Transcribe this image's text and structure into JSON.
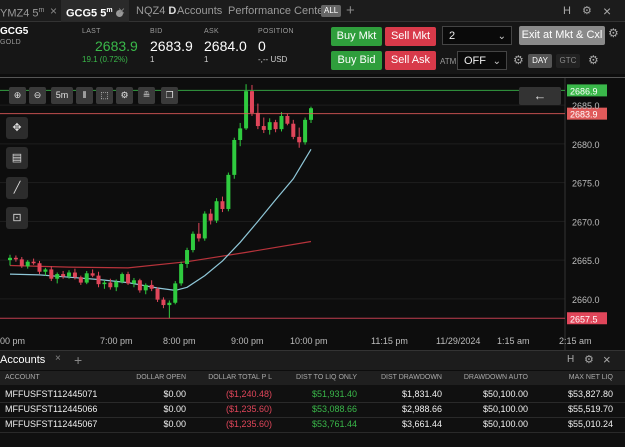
{
  "tabs": {
    "t1": "YMZ4 5",
    "t1_sup": "m",
    "t2": "GCG5 5",
    "t2_sup": "m",
    "t3": "NQZ4",
    "t3_b": "D",
    "t4": "Accounts",
    "t5": "Performance Center",
    "all_badge": "ALL",
    "add": "+",
    "close": "×",
    "right_h": "H",
    "right_gear": "⚙",
    "right_close": "×"
  },
  "quote": {
    "symbol": "GCG5",
    "name": "GOLD",
    "last_label": "LAST",
    "last_value": "2683.9",
    "change": "19.1 (0.72%)",
    "bid_label": "BID",
    "bid_value": "2683.9",
    "bid_size": "1",
    "ask_label": "ASK",
    "ask_value": "2684.0",
    "ask_size": "1",
    "position_label": "POSITION",
    "position_value": "0",
    "position_sub": "-,-- USD",
    "buy_mkt": "Buy Mkt",
    "sell_mkt": "Sell Mkt",
    "buy_bid": "Buy Bid",
    "sell_ask": "Sell Ask",
    "qty": "2",
    "exit_label": "Exit at Mkt & Cxl",
    "atm_label": "ATM",
    "atm_value": "OFF",
    "day": "DAY",
    "gtc": "GTC"
  },
  "toolbar": {
    "zoom_in": "⊕",
    "zoom_out": "⊖",
    "interval": "5m",
    "bars": "⦀",
    "select": "⬚",
    "settings": "⚙",
    "indicators": "≞",
    "template": "❐",
    "back": "←"
  },
  "chart_data": {
    "type": "candlestick",
    "symbol": "GCG5",
    "interval": "5m",
    "y_ticks": [
      2660.0,
      2665.0,
      2670.0,
      2675.0,
      2680.0,
      2685.0
    ],
    "x_ticks": [
      "00 pm",
      "7:00 pm",
      "8:00 pm",
      "9:00 pm",
      "10:00 pm",
      "11:15 pm",
      "11/29/2024",
      "1:15 am",
      "2:15 am"
    ],
    "ylim": [
      2656.5,
      2688.5
    ],
    "price_labels": [
      {
        "value": 2686.9,
        "text": "2686.9",
        "color": "#3ab84a"
      },
      {
        "value": 2683.9,
        "text": "2683.9",
        "color": "#e05a5a"
      },
      {
        "value": 2657.5,
        "text": "2657.5",
        "color": "#e0465a"
      }
    ],
    "candles": [
      [
        2665.0,
        2665.7,
        2664.3,
        2665.3
      ],
      [
        2665.3,
        2665.6,
        2664.8,
        2665.1
      ],
      [
        2665.1,
        2665.4,
        2664.0,
        2664.2
      ],
      [
        2664.2,
        2665.0,
        2663.9,
        2664.8
      ],
      [
        2664.8,
        2665.2,
        2664.4,
        2664.6
      ],
      [
        2664.6,
        2664.9,
        2663.2,
        2663.5
      ],
      [
        2663.5,
        2664.0,
        2663.0,
        2663.8
      ],
      [
        2663.8,
        2664.2,
        2662.3,
        2662.6
      ],
      [
        2662.6,
        2663.4,
        2662.0,
        2663.2
      ],
      [
        2663.2,
        2663.6,
        2662.6,
        2662.9
      ],
      [
        2662.9,
        2663.7,
        2662.6,
        2663.4
      ],
      [
        2663.4,
        2663.9,
        2662.5,
        2662.8
      ],
      [
        2662.8,
        2663.0,
        2661.8,
        2662.1
      ],
      [
        2662.1,
        2663.6,
        2661.9,
        2663.3
      ],
      [
        2663.3,
        2663.8,
        2662.8,
        2663.0
      ],
      [
        2663.0,
        2663.5,
        2661.5,
        2661.9
      ],
      [
        2661.9,
        2662.4,
        2661.3,
        2662.1
      ],
      [
        2662.1,
        2662.6,
        2661.2,
        2661.5
      ],
      [
        2661.5,
        2662.5,
        2661.0,
        2662.2
      ],
      [
        2662.2,
        2663.4,
        2662.0,
        2663.2
      ],
      [
        2663.2,
        2663.5,
        2661.8,
        2662.0
      ],
      [
        2662.0,
        2662.7,
        2661.5,
        2662.4
      ],
      [
        2662.4,
        2662.6,
        2660.8,
        2661.1
      ],
      [
        2661.1,
        2662.0,
        2660.6,
        2661.8
      ],
      [
        2661.8,
        2662.4,
        2661.0,
        2661.3
      ],
      [
        2661.3,
        2661.5,
        2659.6,
        2659.9
      ],
      [
        2659.9,
        2660.2,
        2658.8,
        2659.2
      ],
      [
        2659.2,
        2659.8,
        2657.5,
        2659.5
      ],
      [
        2659.5,
        2662.3,
        2659.3,
        2662.0
      ],
      [
        2662.0,
        2664.8,
        2661.7,
        2664.5
      ],
      [
        2664.5,
        2666.6,
        2664.0,
        2666.3
      ],
      [
        2666.3,
        2668.7,
        2666.0,
        2668.4
      ],
      [
        2668.4,
        2669.8,
        2667.4,
        2667.8
      ],
      [
        2667.8,
        2671.3,
        2667.5,
        2671.0
      ],
      [
        2671.0,
        2671.6,
        2669.6,
        2670.1
      ],
      [
        2670.1,
        2673.0,
        2669.8,
        2672.6
      ],
      [
        2672.6,
        2673.2,
        2671.2,
        2671.6
      ],
      [
        2671.6,
        2676.3,
        2671.3,
        2676.0
      ],
      [
        2676.0,
        2680.8,
        2675.5,
        2680.5
      ],
      [
        2680.5,
        2682.7,
        2679.7,
        2682.0
      ],
      [
        2682.0,
        2687.7,
        2681.8,
        2686.8
      ],
      [
        2686.8,
        2687.6,
        2683.6,
        2684.0
      ],
      [
        2684.0,
        2685.2,
        2681.9,
        2682.3
      ],
      [
        2682.3,
        2683.4,
        2681.4,
        2681.8
      ],
      [
        2681.8,
        2683.3,
        2681.2,
        2682.8
      ],
      [
        2682.8,
        2683.1,
        2681.5,
        2681.9
      ],
      [
        2681.9,
        2684.1,
        2681.6,
        2683.6
      ],
      [
        2683.6,
        2683.9,
        2682.4,
        2682.6
      ],
      [
        2682.6,
        2683.1,
        2680.6,
        2680.9
      ],
      [
        2680.9,
        2682.1,
        2679.5,
        2680.2
      ],
      [
        2680.2,
        2683.4,
        2679.9,
        2683.1
      ],
      [
        2683.1,
        2684.8,
        2682.7,
        2684.6
      ]
    ],
    "ma_fast": [
      [
        0,
        2663.2
      ],
      [
        5,
        2663.1
      ],
      [
        10,
        2662.8
      ],
      [
        15,
        2662.5
      ],
      [
        20,
        2662.1
      ],
      [
        25,
        2661.4
      ],
      [
        28,
        2661.1
      ],
      [
        30,
        2661.5
      ],
      [
        33,
        2663.0
      ],
      [
        36,
        2664.9
      ],
      [
        39,
        2667.3
      ],
      [
        42,
        2670.0
      ],
      [
        45,
        2672.8
      ],
      [
        48,
        2675.5
      ],
      [
        51,
        2679.3
      ]
    ],
    "ma_slow": [
      [
        0,
        2664.3
      ],
      [
        10,
        2664.1
      ],
      [
        20,
        2664.0
      ],
      [
        30,
        2664.8
      ],
      [
        40,
        2666.0
      ],
      [
        51,
        2667.4
      ]
    ]
  },
  "accounts": {
    "title": "Accounts",
    "add": "+",
    "h": "H",
    "gear": "⚙",
    "close": "×",
    "columns": [
      "ACCOUNT",
      "DOLLAR OPEN",
      "DOLLAR TOTAL P L",
      "DIST TO LIQ ONLY",
      "DIST DRAWDOWN",
      "DRAWDOWN AUTO",
      "MAX NET LIQ"
    ],
    "rows": [
      {
        "account": "MFFUSFST112445071",
        "open": "$0.00",
        "total_pl": "($1,240.48)",
        "dist_liq": "$51,931.40",
        "dist_dd": "$1,831.40",
        "dd_auto": "$50,100.00",
        "max_liq": "$53,827.80"
      },
      {
        "account": "MFFUSFST112445066",
        "open": "$0.00",
        "total_pl": "($1,235.60)",
        "dist_liq": "$53,088.66",
        "dist_dd": "$2,988.66",
        "dd_auto": "$50,100.00",
        "max_liq": "$55,519.70"
      },
      {
        "account": "MFFUSFST112445067",
        "open": "$0.00",
        "total_pl": "($1,235.60)",
        "dist_liq": "$53,761.44",
        "dist_dd": "$3,661.44",
        "dd_auto": "$50,100.00",
        "max_liq": "$55,010.24"
      }
    ]
  }
}
